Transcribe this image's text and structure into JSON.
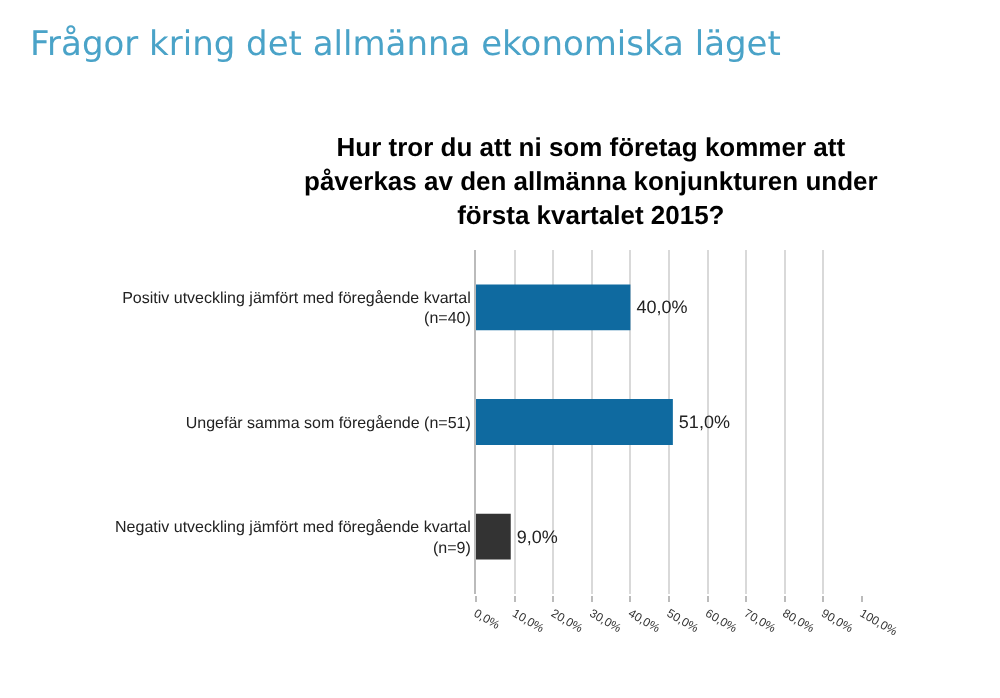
{
  "chart_data": {
    "type": "bar",
    "orientation": "horizontal",
    "title": "Frågor kring det allmänna ekonomiska läget",
    "subtitle": "Hur tror du att ni som företag kommer att\npåverkas av den allmänna konjunkturen under\nförsta kvartalet 2015?",
    "categories": [
      "Positiv utveckling jämfört med föregående kvartal\n(n=40)",
      "Ungefär samma som föregående (n=51)",
      "Negativ utveckling jämfört med föregående kvartal\n(n=9)"
    ],
    "values": [
      40,
      51,
      9
    ],
    "colors": [
      "#0f6aa0",
      "#0f6aa0",
      "#333333"
    ],
    "value_labels": [
      "40,0%",
      "51,0%",
      "9,0%"
    ],
    "xlim": [
      0,
      100
    ],
    "xticks": [
      {
        "value": 0,
        "label": "0,0%"
      },
      {
        "value": 10,
        "label": "10,0%"
      },
      {
        "value": 20,
        "label": "20,0%"
      },
      {
        "value": 30,
        "label": "30,0%"
      },
      {
        "value": 40,
        "label": "40,0%"
      },
      {
        "value": 50,
        "label": "50,0%"
      },
      {
        "value": 60,
        "label": "60,0%"
      },
      {
        "value": 70,
        "label": "70,0%"
      },
      {
        "value": 80,
        "label": "80,0%"
      },
      {
        "value": 90,
        "label": "90,0%"
      },
      {
        "value": 100,
        "label": "100,0%"
      }
    ],
    "grid": "x",
    "legend": false
  }
}
